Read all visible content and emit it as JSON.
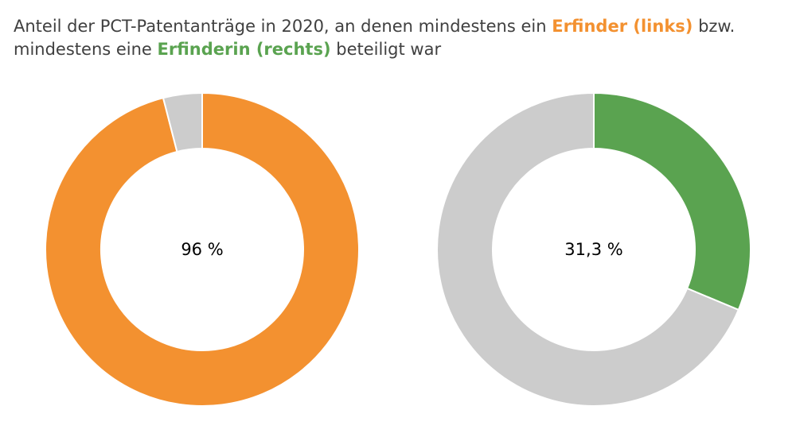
{
  "title": {
    "part1": "Anteil der PCT-Patentanträge in 2020, an denen mindestens ein ",
    "highlight1": "Erfinder (links)",
    "part2": " bzw.",
    "part3": "mindestens eine ",
    "highlight2": "Erfinderin (rechts)",
    "part4": " beteiligt war"
  },
  "colors": {
    "orange": "#f39130",
    "green": "#5aa350",
    "grey": "#cccccc"
  },
  "chart_data": [
    {
      "type": "pie",
      "subtype": "donut",
      "slices": [
        {
          "value": 96,
          "color": "#f39130"
        },
        {
          "value": 4,
          "color": "#cccccc"
        }
      ],
      "center_label": "96 %"
    },
    {
      "type": "pie",
      "subtype": "donut",
      "slices": [
        {
          "value": 31.3,
          "color": "#5aa350"
        },
        {
          "value": 68.7,
          "color": "#cccccc"
        }
      ],
      "center_label": "31,3 %"
    }
  ]
}
